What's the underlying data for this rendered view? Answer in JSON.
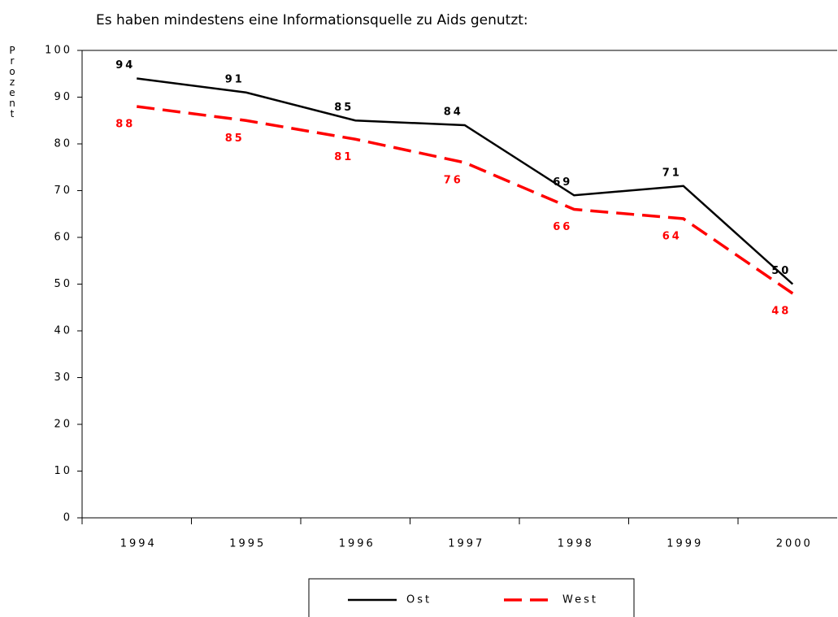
{
  "chart_data": {
    "type": "line",
    "title": "Es haben mindestens eine Informationsquelle zu Aids genutzt:",
    "y_label": "Prozent",
    "categories": [
      "1994",
      "1995",
      "1996",
      "1997",
      "1998",
      "1999",
      "2000"
    ],
    "series": [
      {
        "name": "Ost",
        "color": "#000000",
        "dash": false,
        "values": [
          94,
          91,
          85,
          84,
          69,
          71,
          50
        ]
      },
      {
        "name": "West",
        "color": "#ff0000",
        "dash": true,
        "values": [
          88,
          85,
          81,
          76,
          66,
          64,
          48
        ]
      }
    ],
    "ylim": [
      0,
      100
    ],
    "yticks": [
      0,
      10,
      20,
      30,
      40,
      50,
      60,
      70,
      80,
      90,
      100
    ],
    "grid": false,
    "legend": "bottom"
  }
}
